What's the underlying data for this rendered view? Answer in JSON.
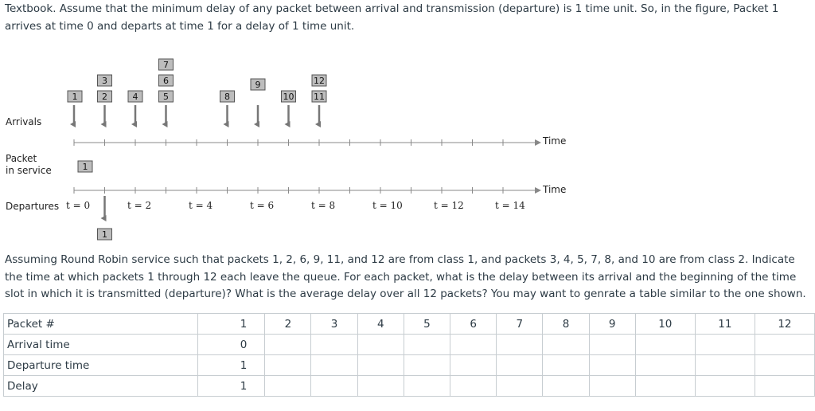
{
  "intro_text": "Textbook. Assume that the minimum delay of any packet between arrival and transmission (departure) is 1 time unit. So, in the figure, Packet 1 arrives at time 0 and departs at time 1 for a delay of 1 time unit.",
  "figure": {
    "arrivals_label": "Arrivals",
    "service_label_line1": "Packet",
    "service_label_line2": "in service",
    "departures_label": "Departures",
    "axis_label_top": "Time",
    "axis_label_bottom": "Time",
    "time_labels": [
      "t = 0",
      "t = 2",
      "t = 4",
      "t = 6",
      "t = 8",
      "t = 10",
      "t = 12",
      "t = 14"
    ],
    "arrival_stacks": [
      {
        "slot": 0,
        "packets": [
          "1"
        ]
      },
      {
        "slot": 1,
        "packets": [
          "2",
          "3"
        ]
      },
      {
        "slot": 2,
        "packets": [
          "4"
        ]
      },
      {
        "slot": 3,
        "packets": [
          "5",
          "6",
          "7"
        ]
      },
      {
        "slot": 5,
        "packets": [
          "8"
        ]
      },
      {
        "slot": 6,
        "packets": [
          "9"
        ]
      },
      {
        "slot": 7,
        "packets": [
          "10"
        ]
      },
      {
        "slot": 8,
        "packets": [
          "11",
          "12"
        ]
      }
    ],
    "in_service": [
      {
        "slot": 0,
        "packet": "1"
      }
    ],
    "departed": [
      {
        "slot": 1,
        "packet": "1"
      }
    ]
  },
  "question_text": "Assuming Round Robin service such that packets 1, 2, 6, 9, 11, and 12 are from class 1, and packets 3, 4, 5, 7, 8, and 10 are from class 2. Indicate the time at which packets 1 through 12 each leave the queue. For each packet, what is the delay between its arrival and the beginning of the time slot in which it is transmitted (departure)? What is the average delay over all 12 packets? You may want to genrate a table similar to the one shown.",
  "table": {
    "rows": [
      {
        "label": "Packet #",
        "cells": [
          "1",
          "2",
          "3",
          "4",
          "5",
          "6",
          "7",
          "8",
          "9",
          "10",
          "11",
          "12"
        ]
      },
      {
        "label": "Arrival time",
        "cells": [
          "0",
          "",
          "",
          "",
          "",
          "",
          "",
          "",
          "",
          "",
          "",
          ""
        ]
      },
      {
        "label": "Departure time",
        "cells": [
          "1",
          "",
          "",
          "",
          "",
          "",
          "",
          "",
          "",
          "",
          "",
          ""
        ]
      },
      {
        "label": "Delay",
        "cells": [
          "1",
          "",
          "",
          "",
          "",
          "",
          "",
          "",
          "",
          "",
          "",
          ""
        ]
      }
    ]
  }
}
